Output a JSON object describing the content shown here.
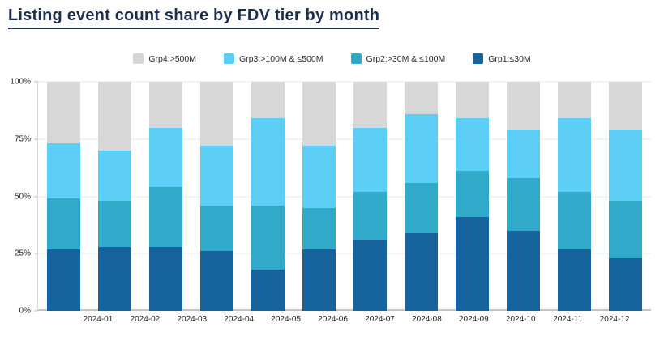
{
  "title": "Listing event count share by FDV tier by month",
  "colors": {
    "title_text": "#1c2e4e",
    "gridline": "#e9e9e9",
    "zero_axis_line": "#c3c3c3",
    "axis_text": "#1f1f1f",
    "grp1": "#17639d",
    "grp2": "#31aac9",
    "grp3": "#5ccdf5",
    "grp4": "#d7d7d7"
  },
  "chart_data": {
    "type": "bar",
    "stacked": true,
    "stack_unit": "percent_share",
    "title": "Listing event count share by FDV tier by month",
    "xlabel": "",
    "ylabel": "",
    "ylim": [
      0,
      100
    ],
    "grid": true,
    "legend_position": "top-center",
    "y_ticks": [
      "0%",
      "25%",
      "50%",
      "75%",
      "100%"
    ],
    "y_tick_values": [
      0,
      25,
      50,
      75,
      100
    ],
    "categories": [
      "2024-01",
      "2024-02",
      "2024-03",
      "2024-04",
      "2024-05",
      "2024-06",
      "2024-07",
      "2024-08",
      "2024-09",
      "2024-10",
      "2024-11",
      "2024-12"
    ],
    "legend_order": [
      "Grp4:>500M",
      "Grp3:>100M & ≤500M",
      "Grp2:>30M & ≤100M",
      "Grp1:≤30M"
    ],
    "series": [
      {
        "name": "Grp1:≤30M",
        "key": "grp1",
        "color": "#17639d",
        "values": [
          27,
          28,
          28,
          26,
          18,
          27,
          31,
          34,
          41,
          35,
          27,
          23
        ]
      },
      {
        "name": "Grp2:>30M & ≤100M",
        "key": "grp2",
        "color": "#31aac9",
        "values": [
          22,
          20,
          26,
          20,
          28,
          18,
          21,
          22,
          20,
          23,
          25,
          25
        ]
      },
      {
        "name": "Grp3:>100M & ≤500M",
        "key": "grp3",
        "color": "#5ccdf5",
        "values": [
          24,
          22,
          26,
          26,
          38,
          27,
          28,
          30,
          23,
          21,
          32,
          31
        ]
      },
      {
        "name": "Grp4:>500M",
        "key": "grp4",
        "color": "#d7d7d7",
        "values": [
          27,
          30,
          20,
          28,
          16,
          28,
          20,
          14,
          16,
          21,
          16,
          21
        ]
      }
    ]
  }
}
